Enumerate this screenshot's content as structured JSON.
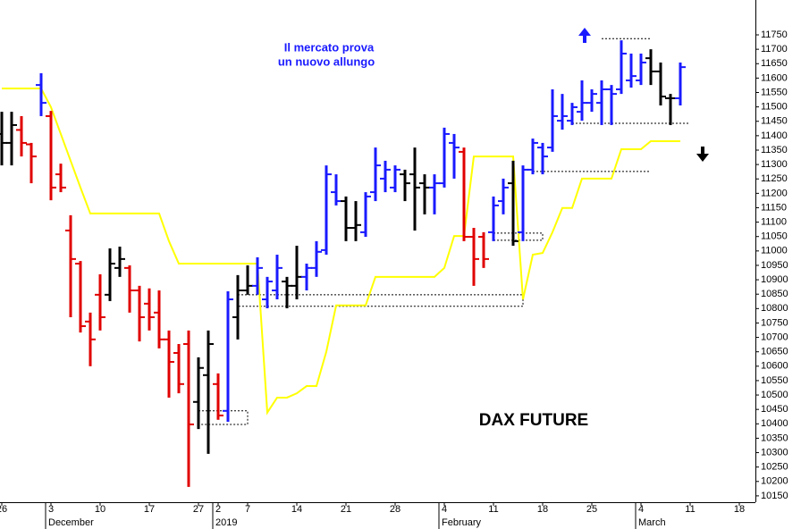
{
  "chart_data": {
    "type": "ohlc",
    "title": "DAX FUTURE",
    "annotations": [
      "Il mercato prova",
      "un nuovo allungo"
    ],
    "categories": [
      "26",
      null,
      null,
      null,
      null,
      "3",
      null,
      null,
      null,
      null,
      "10",
      null,
      null,
      null,
      null,
      "17",
      null,
      null,
      null,
      null,
      "27",
      null,
      "2",
      null,
      null,
      "7",
      null,
      null,
      null,
      null,
      "14",
      null,
      null,
      null,
      null,
      "21",
      null,
      null,
      null,
      null,
      "28",
      null,
      null,
      null,
      null,
      "4",
      null,
      null,
      null,
      null,
      "11",
      null,
      null,
      null,
      null,
      "18",
      null,
      null,
      null,
      null,
      "25",
      null,
      null,
      null,
      null,
      "4",
      null,
      null,
      null,
      null,
      "11",
      null,
      null,
      null,
      null,
      "18"
    ],
    "months": [
      {
        "label": "December",
        "category": 5
      },
      {
        "label": "2019",
        "category": 22
      },
      {
        "label": "February",
        "category": 45
      },
      {
        "label": "March",
        "category": 65
      }
    ],
    "open": [
      11406,
      11375,
      11420,
      11370,
      11576,
      11468,
      11266,
      11071,
      10956,
      10755,
      10848,
      10848,
      10941,
      10941,
      10863,
      10817,
      10786,
      10693,
      10646,
      10677,
      10476,
      10569,
      10538,
      10445,
      10770,
      10863,
      10879,
      10832,
      10863,
      10894,
      10879,
      10910,
      10941,
      11003,
      11204,
      11173,
      11080,
      11065,
      11204,
      11251,
      11220,
      11266,
      11266,
      11235,
      11220,
      11235,
      11375,
      11344,
      11049,
      11049,
      11065,
      11173,
      11235,
      11065,
      11282,
      11359,
      11359,
      11452,
      11452,
      11483,
      11514,
      11514,
      11561,
      11561,
      11592,
      11592,
      11669,
      11623,
      11530,
      11530,
      null,
      null,
      null,
      null,
      null,
      null
    ],
    "high": [
      11483,
      11483,
      11468,
      11375,
      11617,
      11486,
      11303,
      11124,
      10965,
      10786,
      10919,
      11009,
      11015,
      10950,
      10879,
      10870,
      10863,
      10724,
      10677,
      10724,
      10631,
      10724,
      10575,
      10860,
      10916,
      10950,
      10978,
      10910,
      10987,
      10910,
      11018,
      10956,
      11034,
      11297,
      11266,
      11189,
      11173,
      11204,
      11359,
      11313,
      11297,
      11282,
      11359,
      11266,
      11266,
      11428,
      11406,
      11359,
      11080,
      11065,
      11189,
      11251,
      11313,
      11297,
      11390,
      11375,
      11561,
      11545,
      11514,
      11592,
      11561,
      11592,
      11576,
      11731,
      11685,
      11685,
      11700,
      11654,
      11545,
      11654,
      null,
      null,
      null,
      null,
      null,
      null
    ],
    "low": [
      11297,
      11297,
      11328,
      11235,
      11468,
      11176,
      11204,
      10770,
      10717,
      10600,
      10724,
      10826,
      10910,
      10786,
      10686,
      10724,
      10662,
      10491,
      10506,
      10181,
      10382,
      10296,
      10414,
      10407,
      10693,
      10848,
      10848,
      10801,
      10832,
      10801,
      10832,
      10863,
      10910,
      10987,
      11158,
      11034,
      11034,
      11049,
      11173,
      11204,
      11204,
      11173,
      11071,
      11127,
      11127,
      11220,
      11251,
      11034,
      10879,
      10941,
      11034,
      11127,
      11018,
      11034,
      11266,
      11266,
      11344,
      11421,
      11437,
      11452,
      11483,
      11437,
      11437,
      11545,
      11567,
      11576,
      11576,
      11505,
      11437,
      11505,
      null,
      null,
      null,
      null,
      null,
      null
    ],
    "close": [
      11375,
      11437,
      11375,
      11328,
      11514,
      11220,
      11220,
      10972,
      10739,
      10693,
      10770,
      10956,
      10972,
      10863,
      10770,
      10770,
      10693,
      10615,
      10538,
      10398,
      10594,
      10677,
      10429,
      10832,
      10863,
      10879,
      10941,
      10894,
      10941,
      10879,
      10910,
      10941,
      10997,
      11266,
      11173,
      11080,
      11090,
      11189,
      11297,
      11282,
      11282,
      11235,
      11220,
      11220,
      11235,
      11406,
      11359,
      11049,
      10972,
      10972,
      11158,
      11220,
      11034,
      11282,
      11375,
      11328,
      11468,
      11468,
      11499,
      11514,
      11545,
      11561,
      11545,
      11685,
      11607,
      11654,
      11623,
      11536,
      11530,
      11638,
      null,
      null,
      null,
      null,
      null,
      null
    ],
    "colors": [
      "#000000",
      "#000000",
      "#e00000",
      "#e00000",
      "#1a1aff",
      "#e00000",
      "#e00000",
      "#e00000",
      "#e00000",
      "#e00000",
      "#e00000",
      "#000000",
      "#000000",
      "#e00000",
      "#e00000",
      "#e00000",
      "#e00000",
      "#e00000",
      "#e00000",
      "#e00000",
      "#000000",
      "#000000",
      "#e00000",
      "#1a1aff",
      "#000000",
      "#000000",
      "#1a1aff",
      "#1a1aff",
      "#1a1aff",
      "#000000",
      "#000000",
      "#1a1aff",
      "#1a1aff",
      "#1a1aff",
      "#1a1aff",
      "#000000",
      "#000000",
      "#1a1aff",
      "#1a1aff",
      "#1a1aff",
      "#1a1aff",
      "#000000",
      "#000000",
      "#000000",
      "#1a1aff",
      "#1a1aff",
      "#1a1aff",
      "#e00000",
      "#e00000",
      "#e00000",
      "#1a1aff",
      "#1a1aff",
      "#000000",
      "#1a1aff",
      "#1a1aff",
      "#1a1aff",
      "#1a1aff",
      "#1a1aff",
      "#1a1aff",
      "#1a1aff",
      "#1a1aff",
      "#1a1aff",
      "#1a1aff",
      "#1a1aff",
      "#1a1aff",
      "#1a1aff",
      "#000000",
      "#000000",
      "#000000",
      "#1a1aff",
      null,
      null,
      null,
      null,
      null,
      null
    ],
    "stop_line": {
      "color": "#ffff00",
      "values": [
        11564,
        11564,
        11564,
        11564,
        11564,
        11499,
        11406,
        11313,
        11220,
        11130,
        11130,
        11130,
        11130,
        11130,
        11130,
        11130,
        11130,
        11034,
        10956,
        10956,
        10956,
        10956,
        10956,
        10956,
        10956,
        10956,
        10956,
        10439,
        10491,
        10491,
        10506,
        10531,
        10531,
        10650,
        10811,
        10811,
        10811,
        10811,
        10910,
        10910,
        10910,
        10910,
        10910,
        10910,
        10910,
        10941,
        11052,
        11052,
        11328,
        11328,
        11328,
        11328,
        11328,
        10832,
        10987,
        10993,
        11065,
        11149,
        11149,
        11251,
        11251,
        11251,
        11251,
        11353,
        11353,
        11353,
        11381,
        11381,
        11381,
        11381,
        null,
        null,
        null,
        null,
        null,
        null
      ]
    },
    "levels": [
      {
        "span": [
          61,
          66
        ],
        "range": [
          11737,
          11737
        ]
      },
      {
        "span": [
          58,
          70
        ],
        "range": [
          11443,
          11443
        ]
      },
      {
        "span": [
          54,
          66
        ],
        "range": [
          11276,
          11276
        ]
      },
      {
        "span": [
          50,
          55
        ],
        "range": [
          11037,
          11062
        ]
      },
      {
        "span": [
          24,
          53
        ],
        "range": [
          10808,
          10848
        ]
      },
      {
        "span": [
          20,
          25
        ],
        "range": [
          10398,
          10445
        ]
      }
    ],
    "ylim": [
      10128,
      11871
    ],
    "yticks": [
      10150,
      10200,
      10250,
      10300,
      10350,
      10400,
      10450,
      10500,
      10550,
      10600,
      10650,
      10700,
      10750,
      10800,
      10850,
      10900,
      10950,
      11000,
      11050,
      11100,
      11150,
      11200,
      11250,
      11300,
      11350,
      11400,
      11450,
      11500,
      11550,
      11600,
      11650,
      11700,
      11750
    ]
  }
}
